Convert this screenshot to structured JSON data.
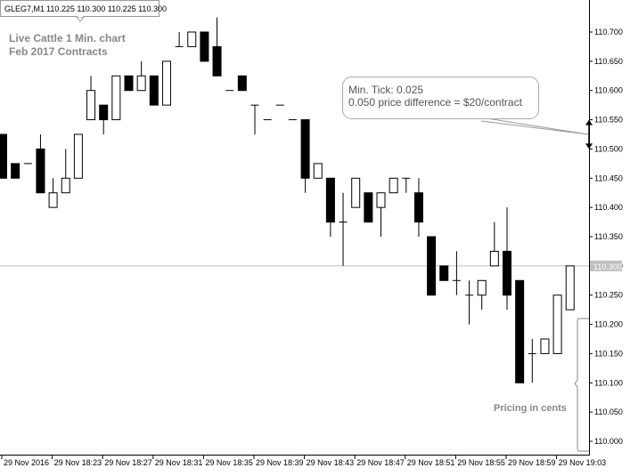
{
  "header": {
    "symbol": "GLEG7,M1",
    "quote": "110.225 110.300 110.225 110.300"
  },
  "overlay_title": {
    "line1": "Live Cattle 1 Min. chart",
    "line2": "Feb 2017 Contracts"
  },
  "callout": {
    "line1": "Min. Tick: 0.025",
    "line2": "0.050 price difference = $20/contract"
  },
  "pricing_note": "Pricing in cents",
  "colors": {
    "bull_fill": "#ffffff",
    "bear_fill": "#000000",
    "candle_outline": "#000000",
    "axis": "#000000",
    "price_line": "#c0c0c0",
    "price_label_bg": "#c0c0c0",
    "annotation_text": "#888888",
    "callout_border": "#aaaaaa"
  },
  "chart_data": {
    "type": "candlestick",
    "ylim": [
      109.975,
      110.725
    ],
    "grid": false,
    "current_price": 110.3,
    "y_ticks": [
      "110.700",
      "110.650",
      "110.600",
      "110.550",
      "110.500",
      "110.450",
      "110.400",
      "110.350",
      "110.300",
      "110.250",
      "110.200",
      "110.150",
      "110.100",
      "110.050",
      "110.000"
    ],
    "x_ticks": [
      "29 Nov 2016",
      "29 Nov 18:23",
      "29 Nov 18:27",
      "29 Nov 18:31",
      "29 Nov 18:35",
      "29 Nov 18:39",
      "29 Nov 18:43",
      "29 Nov 18:47",
      "29 Nov 18:51",
      "29 Nov 18:55",
      "29 Nov 18:59",
      "29 Nov 19:03"
    ],
    "candles": [
      {
        "open": 110.525,
        "high": 110.525,
        "low": 110.45,
        "close": 110.45
      },
      {
        "open": 110.475,
        "high": 110.475,
        "low": 110.45,
        "close": 110.45
      },
      {
        "open": 110.475,
        "high": 110.475,
        "low": 110.475,
        "close": 110.475
      },
      {
        "open": 110.5,
        "high": 110.525,
        "low": 110.425,
        "close": 110.425
      },
      {
        "open": 110.4,
        "high": 110.45,
        "low": 110.4,
        "close": 110.425
      },
      {
        "open": 110.425,
        "high": 110.5,
        "low": 110.425,
        "close": 110.45
      },
      {
        "open": 110.45,
        "high": 110.525,
        "low": 110.45,
        "close": 110.525
      },
      {
        "open": 110.55,
        "high": 110.625,
        "low": 110.55,
        "close": 110.6
      },
      {
        "open": 110.575,
        "high": 110.575,
        "low": 110.525,
        "close": 110.55
      },
      {
        "open": 110.55,
        "high": 110.625,
        "low": 110.55,
        "close": 110.625
      },
      {
        "open": 110.625,
        "high": 110.625,
        "low": 110.6,
        "close": 110.6
      },
      {
        "open": 110.6,
        "high": 110.65,
        "low": 110.6,
        "close": 110.625
      },
      {
        "open": 110.625,
        "high": 110.625,
        "low": 110.575,
        "close": 110.575
      },
      {
        "open": 110.575,
        "high": 110.65,
        "low": 110.575,
        "close": 110.65
      },
      {
        "open": 110.675,
        "high": 110.7,
        "low": 110.675,
        "close": 110.675
      },
      {
        "open": 110.675,
        "high": 110.7,
        "low": 110.675,
        "close": 110.7
      },
      {
        "open": 110.7,
        "high": 110.7,
        "low": 110.65,
        "close": 110.65
      },
      {
        "open": 110.675,
        "high": 110.725,
        "low": 110.625,
        "close": 110.625
      },
      {
        "open": 110.6,
        "high": 110.6,
        "low": 110.6,
        "close": 110.6
      },
      {
        "open": 110.625,
        "high": 110.625,
        "low": 110.6,
        "close": 110.6
      },
      {
        "open": 110.575,
        "high": 110.575,
        "low": 110.525,
        "close": 110.575
      },
      {
        "open": 110.55,
        "high": 110.55,
        "low": 110.55,
        "close": 110.55
      },
      {
        "open": 110.575,
        "high": 110.575,
        "low": 110.575,
        "close": 110.575
      },
      {
        "open": 110.55,
        "high": 110.55,
        "low": 110.55,
        "close": 110.55
      },
      {
        "open": 110.55,
        "high": 110.55,
        "low": 110.425,
        "close": 110.45
      },
      {
        "open": 110.45,
        "high": 110.475,
        "low": 110.45,
        "close": 110.475
      },
      {
        "open": 110.45,
        "high": 110.45,
        "low": 110.35,
        "close": 110.375
      },
      {
        "open": 110.375,
        "high": 110.425,
        "low": 110.3,
        "close": 110.375
      },
      {
        "open": 110.4,
        "high": 110.45,
        "low": 110.4,
        "close": 110.45
      },
      {
        "open": 110.425,
        "high": 110.425,
        "low": 110.375,
        "close": 110.375
      },
      {
        "open": 110.4,
        "high": 110.425,
        "low": 110.35,
        "close": 110.425
      },
      {
        "open": 110.425,
        "high": 110.45,
        "low": 110.425,
        "close": 110.45
      },
      {
        "open": 110.45,
        "high": 110.45,
        "low": 110.425,
        "close": 110.45
      },
      {
        "open": 110.425,
        "high": 110.45,
        "low": 110.35,
        "close": 110.375
      },
      {
        "open": 110.35,
        "high": 110.35,
        "low": 110.25,
        "close": 110.25
      },
      {
        "open": 110.3,
        "high": 110.3,
        "low": 110.275,
        "close": 110.275
      },
      {
        "open": 110.275,
        "high": 110.325,
        "low": 110.25,
        "close": 110.275
      },
      {
        "open": 110.25,
        "high": 110.275,
        "low": 110.2,
        "close": 110.25
      },
      {
        "open": 110.25,
        "high": 110.275,
        "low": 110.225,
        "close": 110.275
      },
      {
        "open": 110.3,
        "high": 110.375,
        "low": 110.3,
        "close": 110.325
      },
      {
        "open": 110.325,
        "high": 110.4,
        "low": 110.225,
        "close": 110.25
      },
      {
        "open": 110.275,
        "high": 110.275,
        "low": 110.1,
        "close": 110.1
      },
      {
        "open": 110.15,
        "high": 110.175,
        "low": 110.1,
        "close": 110.15
      },
      {
        "open": 110.15,
        "high": 110.175,
        "low": 110.15,
        "close": 110.175
      },
      {
        "open": 110.15,
        "high": 110.25,
        "low": 110.15,
        "close": 110.25
      },
      {
        "open": 110.225,
        "high": 110.3,
        "low": 110.225,
        "close": 110.3
      }
    ]
  }
}
